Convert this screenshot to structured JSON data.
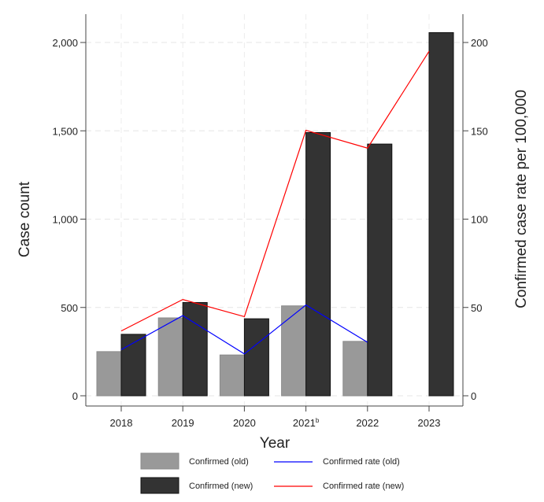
{
  "chart_data": {
    "type": "bar",
    "categories": [
      "2018",
      "2019",
      "2020",
      "2021",
      "2022",
      "2023"
    ],
    "category_superscripts": [
      "",
      "",
      "",
      "b",
      "",
      ""
    ],
    "xlabel": "Year",
    "ylabel": "Case count",
    "ylabel_right": "Confirmed case rate per 100,000",
    "ylim": [
      0,
      2000
    ],
    "ylim_right": [
      0,
      200
    ],
    "yticks": [
      0,
      500,
      1000,
      1500,
      2000
    ],
    "ytick_labels": [
      "0",
      "500",
      "1,000",
      "1,500",
      "2,000"
    ],
    "yticks_right": [
      0,
      50,
      100,
      150,
      200
    ],
    "ytick_labels_right": [
      "0",
      "50",
      "100",
      "150",
      "200"
    ],
    "grid": true,
    "legend_position": "bottom",
    "series": [
      {
        "name": "Confirmed (old)",
        "type": "bar",
        "axis": "left",
        "color": "#999999",
        "values": [
          250,
          441,
          231,
          509,
          308,
          null
        ]
      },
      {
        "name": "Confirmed (new)",
        "type": "bar",
        "axis": "left",
        "color": "#333333",
        "values": [
          348,
          528,
          436,
          1490,
          1425,
          2056
        ]
      },
      {
        "name": "Confirmed rate (old)",
        "type": "line",
        "axis": "right",
        "color": "#0000ff",
        "values": [
          26.1,
          45.4,
          23.7,
          51.4,
          30.3,
          null
        ]
      },
      {
        "name": "Confirmed rate (new)",
        "type": "line",
        "axis": "right",
        "color": "#ff0000",
        "values": [
          36.7,
          54.5,
          44.8,
          150.3,
          140.2,
          195
        ]
      }
    ]
  }
}
